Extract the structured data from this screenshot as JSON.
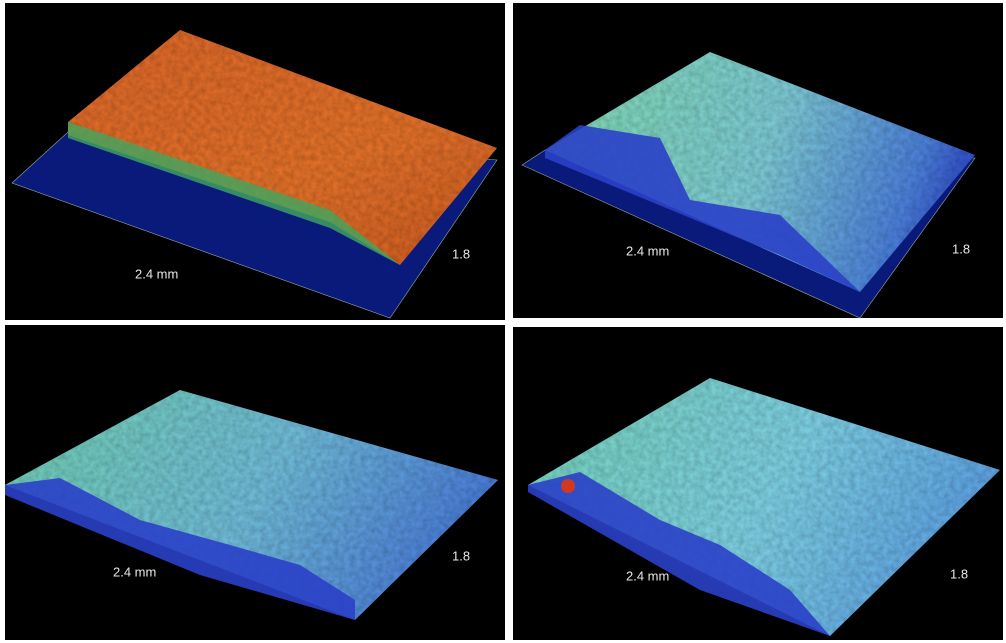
{
  "panels": [
    {
      "x_label": "2.4 mm",
      "y_label": "1.8"
    },
    {
      "x_label": "2.4 mm",
      "y_label": "1.8"
    },
    {
      "x_label": "2.4 mm",
      "y_label": "1.8"
    },
    {
      "x_label": "2.4 mm",
      "y_label": "1.8"
    }
  ]
}
